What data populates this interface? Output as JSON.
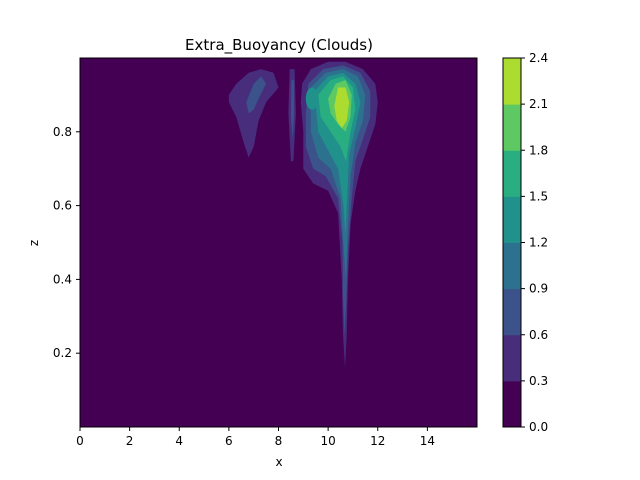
{
  "chart_data": {
    "type": "contour",
    "title": "Extra_Buoyancy (Clouds)",
    "xlabel": "x",
    "ylabel": "z",
    "xlim": [
      0,
      16
    ],
    "ylim": [
      0,
      1
    ],
    "xticks": [
      "0",
      "2",
      "4",
      "6",
      "8",
      "10",
      "12",
      "14"
    ],
    "yticks": [
      "0.2",
      "0.4",
      "0.6",
      "0.8"
    ],
    "colorbar": {
      "levels": [
        0.0,
        0.3,
        0.6,
        0.9,
        1.2,
        1.5,
        1.8,
        2.1,
        2.4
      ],
      "tick_labels": [
        "0.0",
        "0.3",
        "0.6",
        "0.9",
        "1.2",
        "1.5",
        "1.8",
        "2.1",
        "2.4"
      ],
      "colors": [
        "#440154",
        "#472d7b",
        "#3b528b",
        "#2c728e",
        "#21918c",
        "#28ae80",
        "#5ec962",
        "#addc30",
        "#fde725"
      ]
    },
    "features": [
      {
        "name": "left lobe",
        "x_range": [
          6.0,
          8.0
        ],
        "z_range": [
          0.73,
          0.97
        ],
        "max_level": 0.6
      },
      {
        "name": "thin band",
        "x_range": [
          8.4,
          8.7
        ],
        "z_range": [
          0.72,
          0.97
        ],
        "max_level": 0.6
      },
      {
        "name": "main plume",
        "x_range": [
          9.0,
          12.0
        ],
        "z_range": [
          0.16,
          0.99
        ],
        "max_level": 2.4,
        "peak": [
          10.6,
          0.87
        ]
      }
    ],
    "grid": false
  }
}
